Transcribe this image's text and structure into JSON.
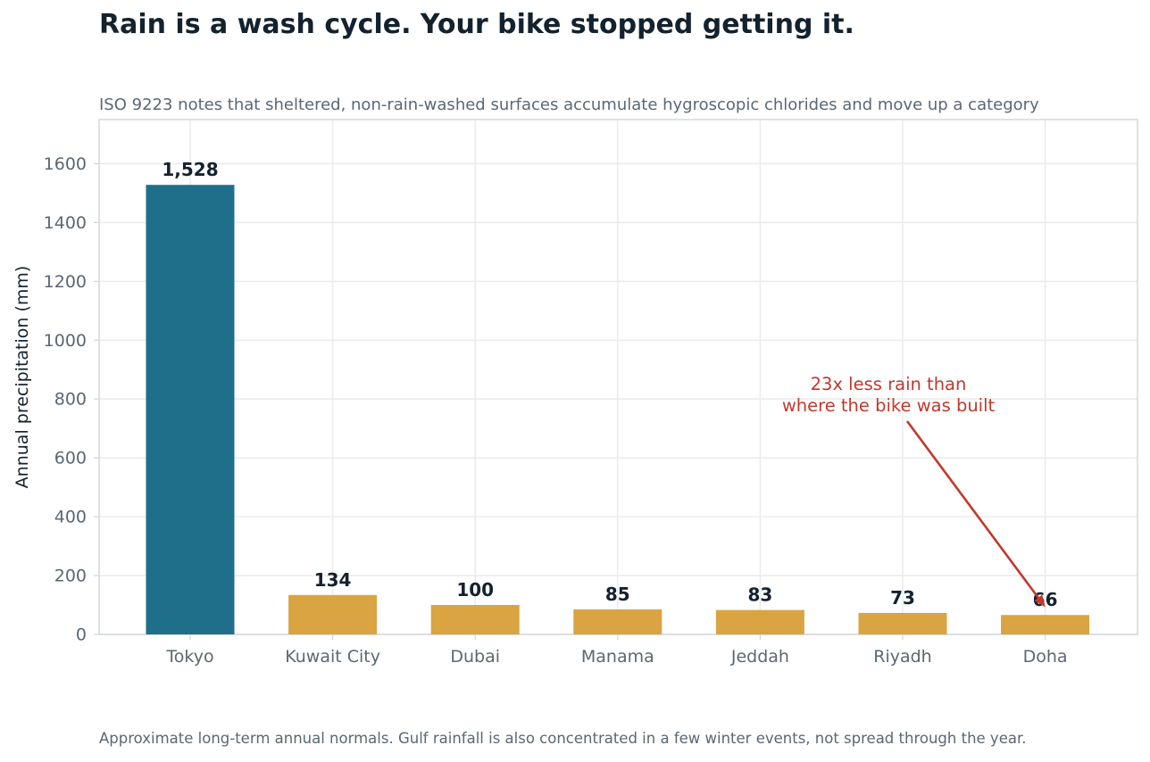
{
  "header": {
    "title": "Rain is a wash cycle. Your bike stopped getting it.",
    "subtitle": "ISO 9223 notes that sheltered, non-rain-washed surfaces accumulate hygroscopic chlorides and move up a category"
  },
  "footer": {
    "note": "Approximate long-term annual normals. Gulf rainfall is also concentrated in a few winter events, not spread through the year."
  },
  "chart_data": {
    "type": "bar",
    "categories": [
      "Tokyo",
      "Kuwait City",
      "Dubai",
      "Manama",
      "Jeddah",
      "Riyadh",
      "Doha"
    ],
    "values": [
      1528,
      134,
      100,
      85,
      83,
      73,
      66
    ],
    "data_labels": [
      "1,528",
      "134",
      "100",
      "85",
      "83",
      "73",
      "66"
    ],
    "ylabel": "Annual precipitation (mm)",
    "xlabel": "",
    "ylim": [
      0,
      1750
    ],
    "yticks": [
      0,
      200,
      400,
      600,
      800,
      1000,
      1200,
      1400,
      1600
    ],
    "grid": true,
    "colors": {
      "highlight": "#1f6f8b",
      "others": "#d9a441",
      "annotation": "#c0392b",
      "grid": "#ececec",
      "axis": "#cfd4d9",
      "tick_text": "#5b6773",
      "label_text": "#13222e"
    },
    "highlight_index": 0,
    "annotation": {
      "lines": [
        "23x less rain than",
        "where the bike was built"
      ],
      "target_category": "Doha",
      "target_value": 66,
      "text_anchor_value": 800
    }
  }
}
